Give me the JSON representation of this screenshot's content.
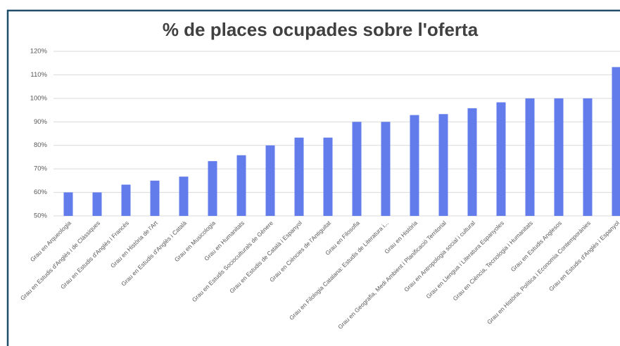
{
  "chart_data": {
    "type": "bar",
    "title": "% de places ocupades sobre l'oferta",
    "categories": [
      "Grau en Arqueologia",
      "Grau en Estudis d'Anglès i de Clàssiques",
      "Grau en Estudis d'Anglès i Francès",
      "Grau en Història de l'Art",
      "Grau en Estudis d'Anglès i Català",
      "Grau en Musicologia",
      "Grau en Humanitats",
      "Grau en Estudis Socioculturals de Gènere",
      "Grau en Estudis de Català i Espanyol",
      "Grau en Ciències de l'Antiguitat",
      "Grau en Filosofia",
      "Grau en Filologia Catalana: Estudis de Literatura i...",
      "Grau en Història",
      "Grau en Geografia, Medi Ambient i Planificació Territorial",
      "Grau en Antropologia social i cultural",
      "Grau en Llengua i Literatura Espanyoles",
      "Grau en Ciència, Tecnologia i Humanitats",
      "Grau en Estudis Anglesos",
      "Grau en Història, Política i Economia Contemporànies",
      "Grau en Estudis d'Anglès i Espanyol"
    ],
    "values": [
      60,
      60,
      63.3,
      65,
      66.7,
      73.3,
      75.8,
      80,
      83.3,
      83.3,
      90,
      90,
      92.9,
      93.3,
      95.8,
      98.3,
      100,
      100,
      100,
      113.3
    ],
    "color": "#637ceb",
    "ylim": [
      50,
      120
    ],
    "yticks": [
      {
        "value": 50,
        "label": "50%"
      },
      {
        "value": 60,
        "label": "60%"
      },
      {
        "value": 70,
        "label": "70%"
      },
      {
        "value": 80,
        "label": "80%"
      },
      {
        "value": 90,
        "label": "90%"
      },
      {
        "value": 100,
        "label": "100%"
      },
      {
        "value": 110,
        "label": "110%"
      },
      {
        "value": 120,
        "label": "120%"
      }
    ],
    "grid": true
  }
}
